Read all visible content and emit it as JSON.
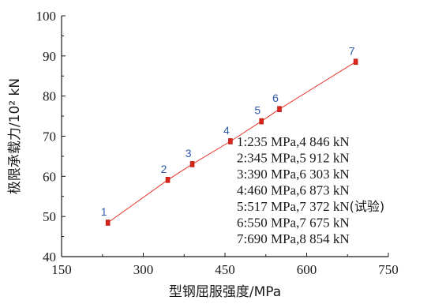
{
  "chart_data": {
    "type": "line",
    "xlabel": "型钢屈服强度/MPa",
    "ylabel": "极限承载力/10² kN",
    "xlim": [
      150,
      750
    ],
    "ylim": [
      40,
      100
    ],
    "xticks": [
      150,
      300,
      450,
      600,
      750
    ],
    "yticks": [
      40,
      50,
      60,
      70,
      80,
      90,
      100
    ],
    "colors": {
      "line": "#e8332a",
      "marker": "#d9241c",
      "label": "#2e5aa8",
      "axis": "#1a1a1a"
    },
    "grid": false,
    "series": [
      {
        "point_labels": [
          "1",
          "2",
          "3",
          "4",
          "5",
          "6",
          "7"
        ],
        "x": [
          235,
          345,
          390,
          460,
          517,
          550,
          690
        ],
        "y": [
          48.46,
          59.12,
          63.03,
          68.73,
          73.72,
          76.75,
          88.54
        ]
      }
    ],
    "annotations": [
      {
        "text": "1:235 MPa,4 846 kN",
        "suffix": ""
      },
      {
        "text": "2:345 MPa,5 912 kN",
        "suffix": ""
      },
      {
        "text": "3:390 MPa,6 303 kN",
        "suffix": ""
      },
      {
        "text": "4:460 MPa,6 873 kN",
        "suffix": ""
      },
      {
        "text": "5:517 MPa,7 372 kN",
        "suffix": "(试验)"
      },
      {
        "text": "6:550 MPa,7 675 kN",
        "suffix": ""
      },
      {
        "text": "7:690 MPa,8 854 kN",
        "suffix": ""
      }
    ]
  }
}
